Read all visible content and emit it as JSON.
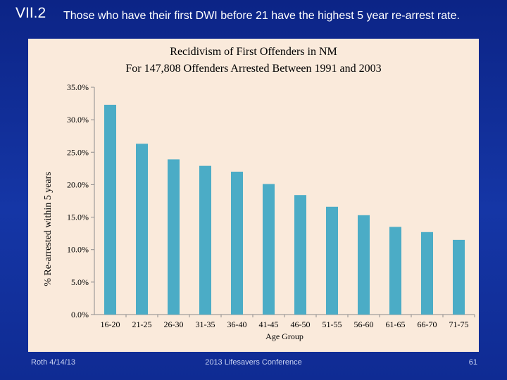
{
  "slide": {
    "number_label": "VII.2",
    "heading": "Those who have their first DWI before 21 have the highest 5 year re-arrest rate."
  },
  "chart_data": {
    "type": "bar",
    "title": "Recidivism of First Offenders in NM",
    "subtitle": "For 147,808 Offenders Arrested Between 1991 and 2003",
    "xlabel": "Age Group",
    "ylabel": "% Re-arrested within 5 years",
    "ylim": [
      0,
      35
    ],
    "yticks": [
      {
        "value": 0,
        "label": "0.0%"
      },
      {
        "value": 5,
        "label": "5.0%"
      },
      {
        "value": 10,
        "label": "10.0%"
      },
      {
        "value": 15,
        "label": "15.0%"
      },
      {
        "value": 20,
        "label": "20.0%"
      },
      {
        "value": 25,
        "label": "25.0%"
      },
      {
        "value": 30,
        "label": "30.0%"
      },
      {
        "value": 35,
        "label": "35.0%"
      }
    ],
    "categories": [
      "16-20",
      "21-25",
      "26-30",
      "31-35",
      "36-40",
      "41-45",
      "46-50",
      "51-55",
      "56-60",
      "61-65",
      "66-70",
      "71-75"
    ],
    "values": [
      32.3,
      26.3,
      23.9,
      22.9,
      22.0,
      20.1,
      18.4,
      16.6,
      15.3,
      13.5,
      12.7,
      11.5
    ],
    "bar_color": "#4bacc6",
    "legend": "none",
    "grid": false
  },
  "footer": {
    "left": "Roth 4/14/13",
    "center": "2013 Lifesavers Conference",
    "right": "61"
  }
}
